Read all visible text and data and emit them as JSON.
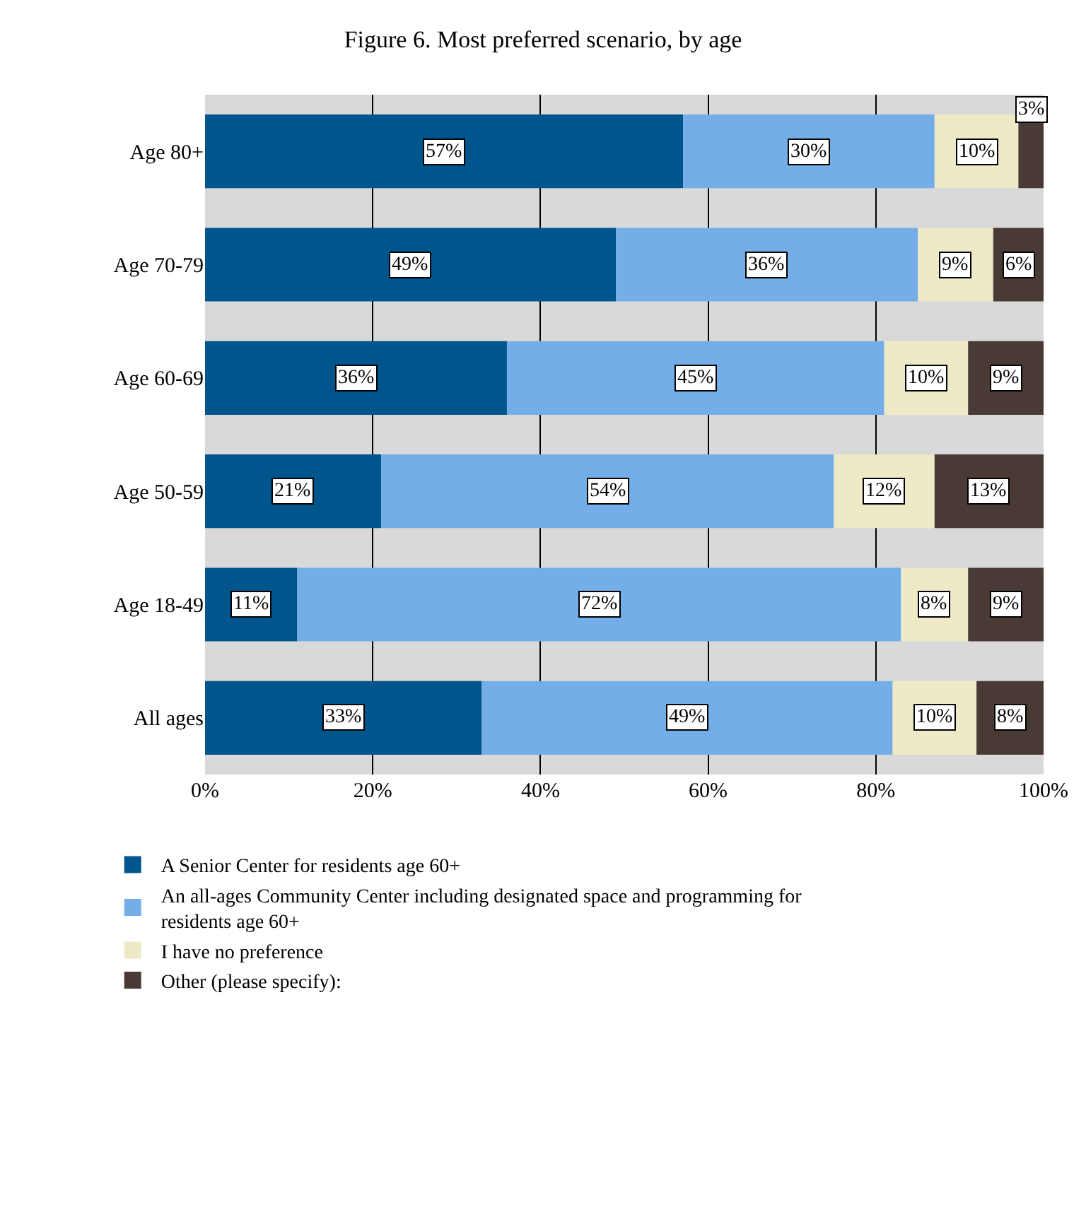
{
  "chart_data": {
    "type": "bar",
    "orientation": "horizontal",
    "stacked": true,
    "title": "Figure 6. Most preferred scenario, by age",
    "categories": [
      "Age 80+",
      "Age 70-79",
      "Age 60-69",
      "Age 50-59",
      "Age 18-49",
      "All ages"
    ],
    "series": [
      {
        "name": "A Senior Center for residents age 60+",
        "color": "#00558c",
        "values": [
          57,
          49,
          36,
          21,
          11,
          33
        ],
        "value_labels": [
          "57%",
          "49%",
          "36%",
          "21%",
          "11%",
          "33%"
        ]
      },
      {
        "name": "An all-ages Community Center including designated space and programming for residents age 60+",
        "color": "#74aee8",
        "values": [
          30,
          36,
          45,
          54,
          72,
          49
        ],
        "value_labels": [
          "30%",
          "36%",
          "45%",
          "54%",
          "72%",
          "49%"
        ]
      },
      {
        "name": "I have no preference",
        "color": "#eeeac8",
        "values": [
          10,
          9,
          10,
          12,
          8,
          10
        ],
        "value_labels": [
          "10%",
          "9%",
          "10%",
          "12%",
          "8%",
          "10%"
        ]
      },
      {
        "name": "Other (please specify):",
        "color": "#4a3a36",
        "values": [
          3,
          6,
          9,
          13,
          9,
          8
        ],
        "value_labels": [
          "3%",
          "6%",
          "9%",
          "13%",
          "9%",
          "8%"
        ]
      }
    ],
    "xlim": [
      0,
      100
    ],
    "xticks": [
      {
        "value": 0,
        "label": "0%"
      },
      {
        "value": 20,
        "label": "20%"
      },
      {
        "value": 40,
        "label": "40%"
      },
      {
        "value": 60,
        "label": "60%"
      },
      {
        "value": 80,
        "label": "80%"
      },
      {
        "value": 100,
        "label": "100%"
      }
    ],
    "grid": "x",
    "legend": "bottom"
  }
}
